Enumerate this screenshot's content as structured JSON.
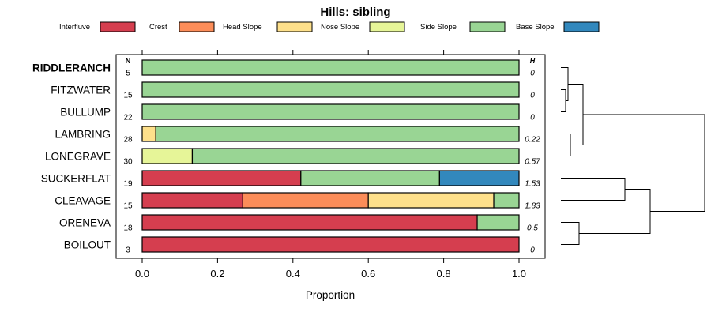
{
  "chart_data": {
    "type": "bar",
    "stacked": true,
    "orientation": "horizontal",
    "title": "Hills: sibling",
    "xlabel": "Proportion",
    "xlim": [
      0,
      1
    ],
    "xticks": [
      "0.0",
      "0.2",
      "0.4",
      "0.6",
      "0.8",
      "1.0"
    ],
    "col_header_n": "N",
    "col_header_h": "H",
    "series": [
      {
        "name": "Interfluve",
        "color": "#D53E4F"
      },
      {
        "name": "Crest",
        "color": "#FC8D59"
      },
      {
        "name": "Head Slope",
        "color": "#FEE08B"
      },
      {
        "name": "Nose Slope",
        "color": "#E6F598"
      },
      {
        "name": "Side Slope",
        "color": "#99D594"
      },
      {
        "name": "Base Slope",
        "color": "#3288BD"
      }
    ],
    "rows": [
      {
        "label": "RIDDLERANCH",
        "bold": true,
        "n": "5",
        "h": "0",
        "values": [
          0,
          0,
          0,
          0,
          1.0,
          0
        ]
      },
      {
        "label": "FITZWATER",
        "bold": false,
        "n": "15",
        "h": "0",
        "values": [
          0,
          0,
          0,
          0,
          1.0,
          0
        ]
      },
      {
        "label": "BULLUMP",
        "bold": false,
        "n": "22",
        "h": "0",
        "values": [
          0,
          0,
          0,
          0,
          1.0,
          0
        ]
      },
      {
        "label": "LAMBRING",
        "bold": false,
        "n": "28",
        "h": "0.22",
        "values": [
          0,
          0,
          0.036,
          0,
          0.964,
          0
        ]
      },
      {
        "label": "LONEGRAVE",
        "bold": false,
        "n": "30",
        "h": "0.57",
        "values": [
          0,
          0,
          0,
          0.133,
          0.867,
          0
        ]
      },
      {
        "label": "SUCKERFLAT",
        "bold": false,
        "n": "19",
        "h": "1.53",
        "values": [
          0.421,
          0,
          0,
          0,
          0.368,
          0.211
        ]
      },
      {
        "label": "CLEAVAGE",
        "bold": false,
        "n": "15",
        "h": "1.83",
        "values": [
          0.267,
          0.333,
          0.333,
          0,
          0.067,
          0
        ]
      },
      {
        "label": "ORENEVA",
        "bold": false,
        "n": "18",
        "h": "0.5",
        "values": [
          0.889,
          0,
          0,
          0,
          0.111,
          0
        ]
      },
      {
        "label": "BOILOUT",
        "bold": false,
        "n": "3",
        "h": "0",
        "values": [
          1.0,
          0,
          0,
          0,
          0,
          0
        ]
      }
    ]
  }
}
